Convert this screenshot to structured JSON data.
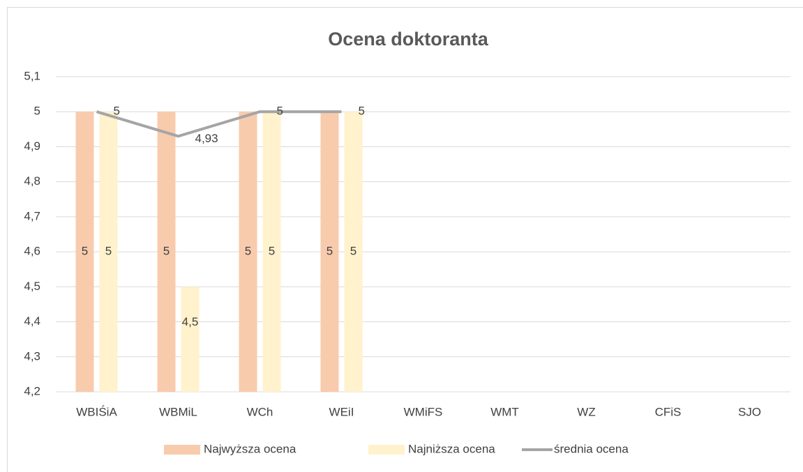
{
  "chart_data": {
    "type": "bar",
    "title": "Ocena doktoranta",
    "categories": [
      "WBIŚiA",
      "WBMiL",
      "WCh",
      "WEiI",
      "WMiFS",
      "WMT",
      "WZ",
      "CFiS",
      "SJO"
    ],
    "series": [
      {
        "name": "Najwyższa ocena",
        "type": "bar",
        "color": "#f8cbad",
        "values": [
          5,
          5,
          5,
          5,
          null,
          null,
          null,
          null,
          null
        ]
      },
      {
        "name": "Najniższa ocena",
        "type": "bar",
        "color": "#fff2cc",
        "values": [
          5,
          4.5,
          5,
          5,
          null,
          null,
          null,
          null,
          null
        ],
        "value_labels": [
          "5",
          "4,5",
          "5",
          "5",
          null,
          null,
          null,
          null,
          null
        ]
      },
      {
        "name": "średnia ocena",
        "type": "line",
        "color": "#a5a5a5",
        "values": [
          5,
          4.93,
          5,
          5,
          null,
          null,
          null,
          null,
          null
        ],
        "value_labels": [
          "5",
          "4,93",
          "5",
          "5",
          null,
          null,
          null,
          null,
          null
        ]
      }
    ],
    "ylim": [
      4.2,
      5.1
    ],
    "yticks": [
      {
        "value": 4.2,
        "label": "4,2"
      },
      {
        "value": 4.3,
        "label": "4,3"
      },
      {
        "value": 4.4,
        "label": "4,4"
      },
      {
        "value": 4.5,
        "label": "4,5"
      },
      {
        "value": 4.6,
        "label": "4,6"
      },
      {
        "value": 4.7,
        "label": "4,7"
      },
      {
        "value": 4.8,
        "label": "4,8"
      },
      {
        "value": 4.9,
        "label": "4,9"
      },
      5,
      {
        "value": 5.1,
        "label": "5,1"
      }
    ],
    "grid": true,
    "legend": "bottom"
  }
}
